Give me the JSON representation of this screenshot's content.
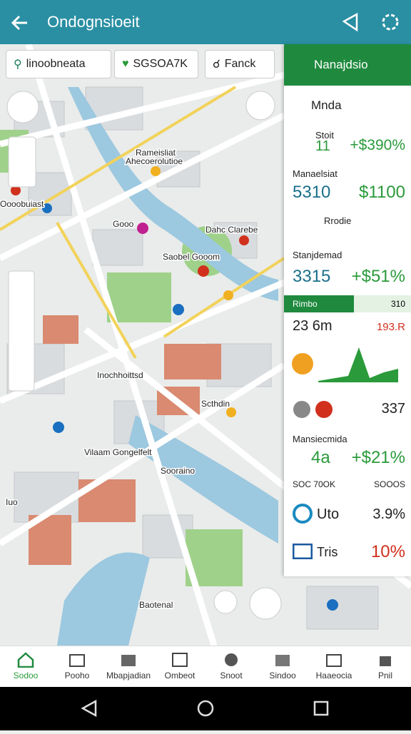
{
  "header": {
    "title": "Ondognsioeit"
  },
  "filters": [
    "linoobneata",
    "SGSOA7K",
    "Fanck"
  ],
  "map_labels": [
    "Rameisliat",
    "Ahecoerolutioe",
    "Oooobuiast",
    "Gooo",
    "Dahc Clarebe",
    "Saobel Gooom",
    "Inochhoittsd",
    "Scthdin",
    "Vilaam Gongelfelt",
    "Sooraino",
    "Iuo",
    "Baotenal"
  ],
  "panel": {
    "title": "Nanajdsio",
    "rows": [
      {
        "label": "Mnda"
      },
      {
        "label": "Stoit",
        "value": "11",
        "change": "+$390%"
      },
      {
        "label": "Manaelsiat",
        "value": "5310",
        "change": "$1100"
      },
      {
        "label": "Rrodie"
      },
      {
        "label": "Stanjdemad",
        "value": "3315",
        "change": "+$51%"
      }
    ],
    "band": {
      "label": "Rimbo",
      "value": "310"
    },
    "lower": [
      {
        "value": "23 6m",
        "change": "193.R"
      },
      {
        "change": "337"
      },
      {
        "label": "Mansiecmida",
        "value": "4a",
        "change": "+$21%"
      },
      {
        "value": "SOC 70OK",
        "change": "SOOOS"
      },
      {
        "value": "Uto",
        "change": "3.9%"
      },
      {
        "value": "Tris",
        "change": "10%"
      }
    ]
  },
  "nav": [
    "Sodoo",
    "Pooho",
    "Mbapjadian",
    "Ombeot",
    "Snoot",
    "Sindoo",
    "Haaeocia",
    "Pnil"
  ]
}
